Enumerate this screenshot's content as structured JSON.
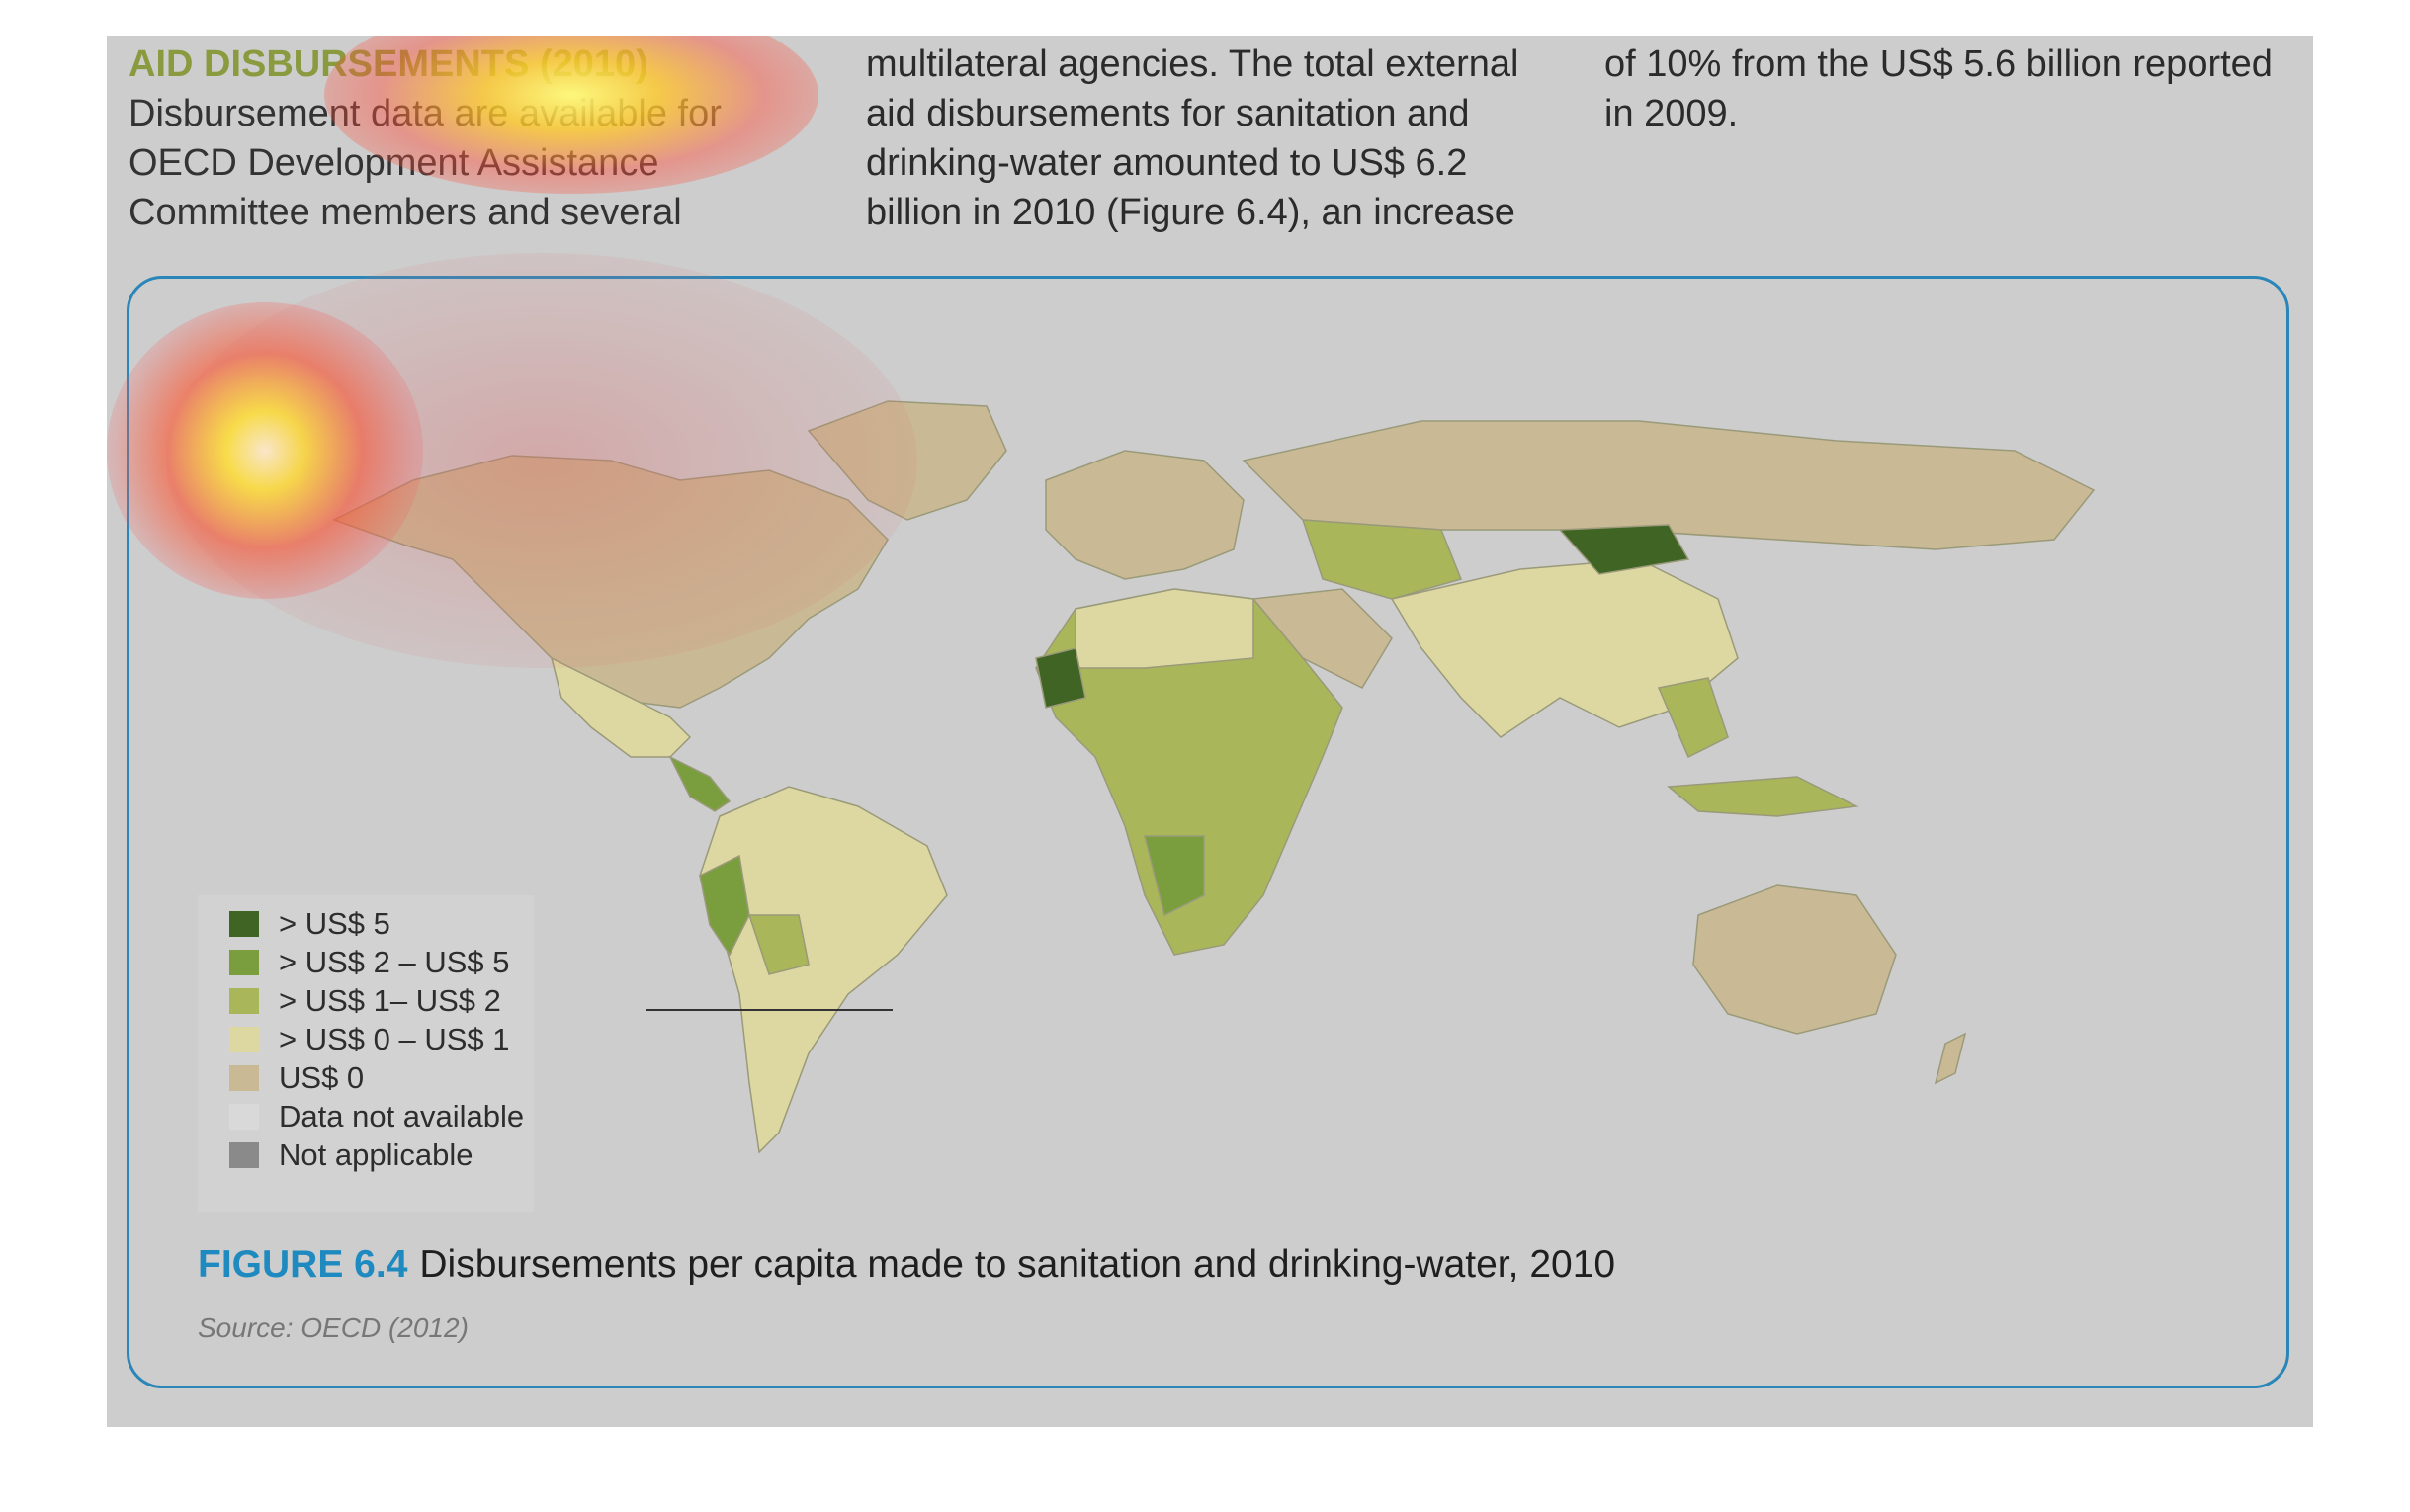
{
  "text": {
    "heading": "AID DISBURSEMENTS (2010)",
    "col1": "Disbursement data are available for OECD Development Assistance Committee members and several",
    "col2": "multilateral agencies. The total external aid disbursements for sanitation and drinking-water amounted to US$ 6.2 billion in 2010 (Figure 6.4), an increase",
    "col3": "of 10% from the US$ 5.6 billion reported in 2009."
  },
  "legend": [
    {
      "label": "> US$ 5",
      "color": "#3f6423"
    },
    {
      "label": "> US$ 2 – US$ 5",
      "color": "#7a9e3e"
    },
    {
      "label": "> US$ 1– US$ 2",
      "color": "#a9b65a"
    },
    {
      "label": "> US$ 0 – US$ 1",
      "color": "#ddd7a2"
    },
    {
      "label": "US$ 0",
      "color": "#c9b994"
    },
    {
      "label": "Data not available",
      "color": "#d9d9d9"
    },
    {
      "label": "Not applicable",
      "color": "#8a8a8a"
    }
  ],
  "figure": {
    "number": "FIGURE 6.4",
    "caption": "Disbursements per capita made to sanitation and drinking-water, 2010",
    "source": "Source: OECD (2012)"
  },
  "colors": {
    "accent": "#1f8ac0",
    "heading": "#8a9a3e",
    "page_bg": "#cdcdcd",
    "box_border": "#2a86b8"
  }
}
